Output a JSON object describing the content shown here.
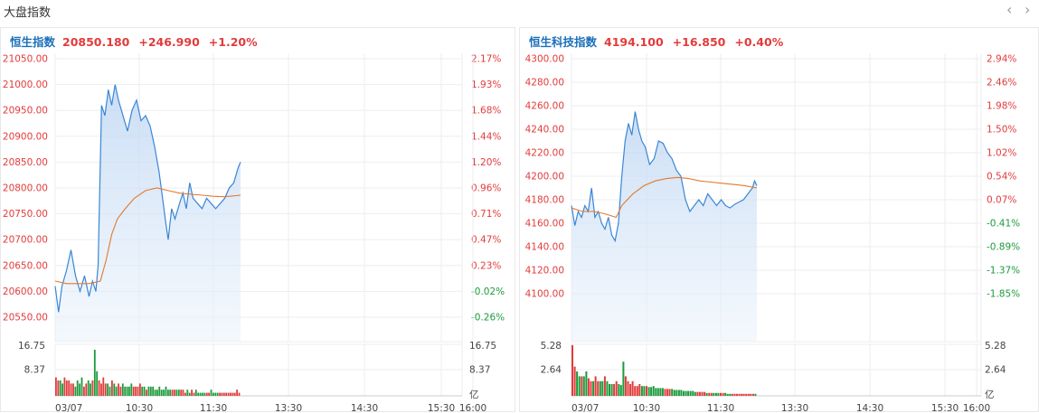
{
  "header": {
    "title": "大盘指数",
    "prev_icon": "chevron-left-icon",
    "next_icon": "chevron-right-icon",
    "prev_glyph": "‹",
    "next_glyph": "›"
  },
  "colors": {
    "up": "#e23b3b",
    "down": "#1d9a3c",
    "line": "#3a86d6",
    "avg": "#e27a2e",
    "name": "#1a6fb8"
  },
  "chart_data": [
    {
      "type": "line",
      "name": "恒生指数",
      "last": "20850.180",
      "change": "+246.990",
      "change_pct": "+1.20%",
      "left_ticks": [
        "21050.00",
        "21000.00",
        "20950.00",
        "20900.00",
        "20850.00",
        "20800.00",
        "20750.00",
        "20700.00",
        "20650.00",
        "20600.00",
        "20550.00"
      ],
      "right_ticks": [
        "2.17%",
        "1.93%",
        "1.68%",
        "1.44%",
        "1.20%",
        "0.96%",
        "0.71%",
        "0.47%",
        "0.23%",
        "-0.02%",
        "-0.26%"
      ],
      "right_tick_sign": [
        "up",
        "up",
        "up",
        "up",
        "up",
        "up",
        "up",
        "up",
        "up",
        "down",
        "down"
      ],
      "ylim": [
        20550,
        21050
      ],
      "x_ticks": [
        "03/07",
        "10:30",
        "11:30",
        "13:30",
        "14:30",
        "15:30",
        "16:00"
      ],
      "vol_ticks": [
        "16.75",
        "8.37"
      ],
      "vol_max": 16.75,
      "vol_unit": "亿",
      "price": [
        [
          0,
          20610
        ],
        [
          3,
          20560
        ],
        [
          6,
          20610
        ],
        [
          10,
          20640
        ],
        [
          14,
          20680
        ],
        [
          18,
          20630
        ],
        [
          22,
          20600
        ],
        [
          26,
          20630
        ],
        [
          30,
          20590
        ],
        [
          33,
          20620
        ],
        [
          36,
          20600
        ],
        [
          38,
          20650
        ],
        [
          41,
          20960
        ],
        [
          44,
          20940
        ],
        [
          47,
          20990
        ],
        [
          50,
          20960
        ],
        [
          53,
          21000
        ],
        [
          56,
          20970
        ],
        [
          60,
          20940
        ],
        [
          64,
          20910
        ],
        [
          68,
          20950
        ],
        [
          72,
          20970
        ],
        [
          76,
          20930
        ],
        [
          80,
          20940
        ],
        [
          84,
          20920
        ],
        [
          88,
          20880
        ],
        [
          92,
          20830
        ],
        [
          95,
          20780
        ],
        [
          98,
          20730
        ],
        [
          100,
          20700
        ],
        [
          103,
          20760
        ],
        [
          106,
          20740
        ],
        [
          110,
          20770
        ],
        [
          113,
          20790
        ],
        [
          116,
          20760
        ],
        [
          119,
          20810
        ],
        [
          122,
          20780
        ],
        [
          126,
          20770
        ],
        [
          130,
          20760
        ],
        [
          134,
          20780
        ],
        [
          138,
          20770
        ],
        [
          142,
          20760
        ],
        [
          146,
          20770
        ],
        [
          150,
          20780
        ],
        [
          154,
          20800
        ],
        [
          158,
          20810
        ],
        [
          162,
          20840
        ],
        [
          164,
          20850
        ]
      ],
      "avg": [
        [
          0,
          20620
        ],
        [
          10,
          20615
        ],
        [
          20,
          20615
        ],
        [
          30,
          20615
        ],
        [
          40,
          20620
        ],
        [
          45,
          20660
        ],
        [
          50,
          20710
        ],
        [
          55,
          20740
        ],
        [
          62,
          20760
        ],
        [
          70,
          20780
        ],
        [
          80,
          20795
        ],
        [
          90,
          20800
        ],
        [
          100,
          20795
        ],
        [
          110,
          20790
        ],
        [
          120,
          20788
        ],
        [
          130,
          20786
        ],
        [
          140,
          20784
        ],
        [
          150,
          20783
        ],
        [
          164,
          20786
        ]
      ],
      "volume": [
        6,
        5,
        5,
        4,
        6,
        5,
        5,
        4,
        4,
        3,
        5,
        4,
        6,
        3,
        4,
        5,
        4,
        5,
        15,
        8,
        5,
        4,
        6,
        4,
        4,
        3,
        5,
        4,
        3,
        4,
        3,
        4,
        3,
        3,
        3,
        4,
        3,
        3,
        3,
        4,
        3,
        3,
        2,
        3,
        3,
        3,
        2,
        2,
        3,
        2,
        2,
        3,
        2,
        2,
        2,
        2,
        2,
        2,
        2,
        2,
        1,
        2,
        1,
        2,
        1,
        2,
        1,
        1,
        1,
        1,
        1,
        1,
        2,
        1,
        1,
        1,
        1,
        1,
        1,
        1,
        1,
        1,
        1,
        1,
        2,
        1
      ]
    },
    {
      "type": "line",
      "name": "恒生科技指数",
      "last": "4194.100",
      "change": "+16.850",
      "change_pct": "+0.40%",
      "left_ticks": [
        "4300.00",
        "4280.00",
        "4260.00",
        "4240.00",
        "4220.00",
        "4200.00",
        "4180.00",
        "4160.00",
        "4140.00",
        "4120.00",
        "4100.00"
      ],
      "right_ticks": [
        "2.94%",
        "2.46%",
        "1.98%",
        "1.50%",
        "1.02%",
        "0.54%",
        "0.07%",
        "-0.41%",
        "-0.89%",
        "-1.37%",
        "-1.85%"
      ],
      "right_tick_sign": [
        "up",
        "up",
        "up",
        "up",
        "up",
        "up",
        "up",
        "down",
        "down",
        "down",
        "down"
      ],
      "ylim": [
        4100,
        4300
      ],
      "x_ticks": [
        "03/07",
        "10:30",
        "11:30",
        "13:30",
        "14:30",
        "15:30",
        "16:00"
      ],
      "vol_ticks": [
        "5.28",
        "2.64"
      ],
      "vol_max": 5.28,
      "vol_unit": "亿",
      "price": [
        [
          0,
          4175
        ],
        [
          3,
          4158
        ],
        [
          6,
          4170
        ],
        [
          9,
          4165
        ],
        [
          12,
          4175
        ],
        [
          15,
          4170
        ],
        [
          18,
          4190
        ],
        [
          21,
          4165
        ],
        [
          24,
          4170
        ],
        [
          27,
          4160
        ],
        [
          30,
          4155
        ],
        [
          33,
          4165
        ],
        [
          36,
          4150
        ],
        [
          39,
          4145
        ],
        [
          42,
          4160
        ],
        [
          45,
          4200
        ],
        [
          48,
          4230
        ],
        [
          51,
          4245
        ],
        [
          54,
          4235
        ],
        [
          57,
          4255
        ],
        [
          60,
          4240
        ],
        [
          63,
          4230
        ],
        [
          66,
          4225
        ],
        [
          70,
          4210
        ],
        [
          74,
          4215
        ],
        [
          78,
          4230
        ],
        [
          82,
          4228
        ],
        [
          86,
          4220
        ],
        [
          90,
          4215
        ],
        [
          94,
          4205
        ],
        [
          98,
          4200
        ],
        [
          102,
          4180
        ],
        [
          106,
          4170
        ],
        [
          110,
          4175
        ],
        [
          114,
          4180
        ],
        [
          118,
          4175
        ],
        [
          122,
          4185
        ],
        [
          126,
          4180
        ],
        [
          130,
          4175
        ],
        [
          134,
          4180
        ],
        [
          138,
          4175
        ],
        [
          142,
          4173
        ],
        [
          146,
          4176
        ],
        [
          150,
          4178
        ],
        [
          154,
          4180
        ],
        [
          158,
          4185
        ],
        [
          162,
          4190
        ],
        [
          164,
          4196
        ],
        [
          166,
          4192
        ]
      ],
      "avg": [
        [
          0,
          4173
        ],
        [
          10,
          4170
        ],
        [
          20,
          4170
        ],
        [
          30,
          4168
        ],
        [
          40,
          4165
        ],
        [
          45,
          4175
        ],
        [
          55,
          4185
        ],
        [
          65,
          4192
        ],
        [
          75,
          4196
        ],
        [
          85,
          4198
        ],
        [
          95,
          4199
        ],
        [
          105,
          4198
        ],
        [
          115,
          4196
        ],
        [
          125,
          4195
        ],
        [
          135,
          4194
        ],
        [
          145,
          4193
        ],
        [
          155,
          4192
        ],
        [
          166,
          4190
        ]
      ],
      "volume": [
        5.2,
        3,
        2.5,
        2,
        2,
        2,
        2.5,
        1.8,
        1.5,
        1.5,
        2,
        1.5,
        1.5,
        1.5,
        2,
        1.5,
        1.2,
        1.2,
        1.2,
        1.5,
        1.2,
        1.1,
        3.5,
        2,
        1.5,
        1.2,
        1.5,
        1,
        1,
        1.2,
        1,
        1,
        1,
        0.9,
        0.9,
        1,
        0.8,
        0.8,
        0.8,
        0.8,
        0.7,
        0.7,
        0.7,
        0.7,
        0.6,
        0.6,
        0.6,
        0.6,
        0.5,
        0.5,
        0.5,
        0.5,
        0.5,
        0.4,
        0.4,
        0.4,
        0.4,
        0.4,
        0.3,
        0.3,
        0.3,
        0.3,
        0.3,
        0.3,
        0.3,
        0.3,
        0.3,
        0.2,
        0.2,
        0.2,
        0.2,
        0.2,
        0.2,
        0.2,
        0.2,
        0.2,
        0.2,
        0.2,
        0.2,
        0.2
      ]
    }
  ]
}
